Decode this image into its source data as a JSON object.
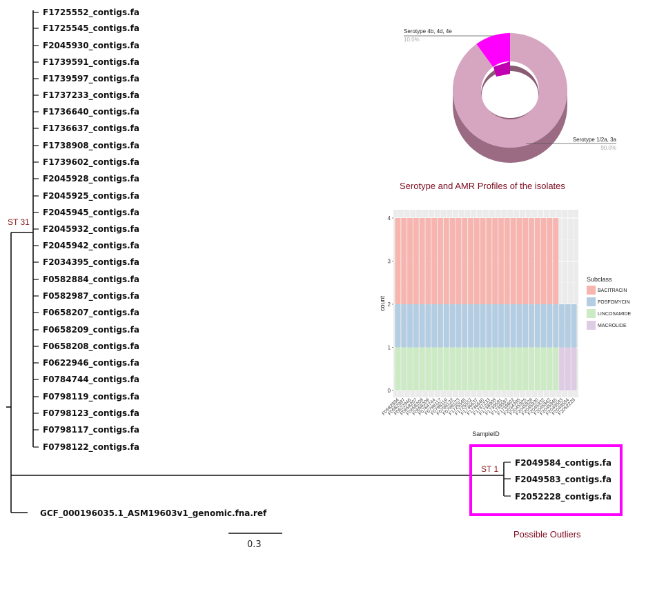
{
  "tree": {
    "st31_label": "ST 31",
    "st1_label": "ST 1",
    "st31_leaves": [
      "F1725552_contigs.fa",
      "F1725545_contigs.fa",
      "F2045930_contigs.fa",
      "F1739591_contigs.fa",
      "F1739597_contigs.fa",
      "F1737233_contigs.fa",
      "F1736640_contigs.fa",
      "F1736637_contigs.fa",
      "F1738908_contigs.fa",
      "F1739602_contigs.fa",
      "F2045928_contigs.fa",
      "F2045925_contigs.fa",
      "F2045945_contigs.fa",
      "F2045932_contigs.fa",
      "F2045942_contigs.fa",
      "F2034395_contigs.fa",
      "F0582884_contigs.fa",
      "F0582987_contigs.fa",
      "F0658207_contigs.fa",
      "F0658209_contigs.fa",
      "F0658208_contigs.fa",
      "F0622946_contigs.fa",
      "F0784744_contigs.fa",
      "F0798119_contigs.fa",
      "F0798123_contigs.fa",
      "F0798117_contigs.fa",
      "F0798122_contigs.fa"
    ],
    "st1_leaves": [
      "F2049584_contigs.fa",
      "F2049583_contigs.fa",
      "F2052228_contigs.fa"
    ],
    "reference_leaf": "GCF_000196035.1_ASM19603v1_genomic.fna.ref",
    "scale_label": "0.3"
  },
  "captions": {
    "profiles": "Serotype and AMR Profiles of the isolates",
    "outliers": "Possible Outliers"
  },
  "colors": {
    "outlier_box": "#ff00ff",
    "caption": "#7b0a1e",
    "donut_main": "#d6a6c1",
    "donut_minor": "#ff00ff",
    "bacitracin": "#f8b4ae",
    "fosfomycin": "#b3cde3",
    "lincosamide": "#ccebc5",
    "macrolide": "#decbe4"
  },
  "chart_data": [
    {
      "type": "pie",
      "style": "donut-3d",
      "slices": [
        {
          "label": "Serotype 4b, 4d, 4e",
          "value": 10.0,
          "percent_label": "10.0%"
        },
        {
          "label": "Serotype 1/2a, 3a",
          "value": 90.0,
          "percent_label": "90.0%"
        }
      ]
    },
    {
      "type": "bar",
      "stacked": true,
      "xlabel": "SampleID",
      "ylabel": "count",
      "ylim": [
        0,
        4
      ],
      "yticks": [
        "0",
        "1",
        "2",
        "3",
        "4"
      ],
      "legend_title": "Subclass",
      "legend_position": "right",
      "categories": [
        "F0582884",
        "F0582987",
        "F0622946",
        "F0658207",
        "F0658208",
        "F0658209",
        "F0784744",
        "F0798117",
        "F0798119",
        "F0798122",
        "F0798123",
        "F1725545",
        "F1725552",
        "F1736637",
        "F1736640",
        "F1737233",
        "F1738908",
        "F1739591",
        "F1739597",
        "F1739602",
        "F2034395",
        "F2045925",
        "F2045928",
        "F2045930",
        "F2045932",
        "F2045942",
        "F2045945",
        "F2049583",
        "F2049584",
        "F2052228"
      ],
      "series": [
        {
          "name": "LINCOSAMIDE",
          "values": [
            1,
            1,
            1,
            1,
            1,
            1,
            1,
            1,
            1,
            1,
            1,
            1,
            1,
            1,
            1,
            1,
            1,
            1,
            1,
            1,
            1,
            1,
            1,
            1,
            1,
            1,
            1,
            0,
            0,
            0
          ]
        },
        {
          "name": "MACROLIDE",
          "values": [
            0,
            0,
            0,
            0,
            0,
            0,
            0,
            0,
            0,
            0,
            0,
            0,
            0,
            0,
            0,
            0,
            0,
            0,
            0,
            0,
            0,
            0,
            0,
            0,
            0,
            0,
            0,
            1,
            1,
            1
          ]
        },
        {
          "name": "FOSFOMYCIN",
          "values": [
            1,
            1,
            1,
            1,
            1,
            1,
            1,
            1,
            1,
            1,
            1,
            1,
            1,
            1,
            1,
            1,
            1,
            1,
            1,
            1,
            1,
            1,
            1,
            1,
            1,
            1,
            1,
            1,
            1,
            1
          ]
        },
        {
          "name": "BACITRACIN",
          "values": [
            2,
            2,
            2,
            2,
            2,
            2,
            2,
            2,
            2,
            2,
            2,
            2,
            2,
            2,
            2,
            2,
            2,
            2,
            2,
            2,
            2,
            2,
            2,
            2,
            2,
            2,
            2,
            0,
            0,
            0
          ]
        }
      ],
      "legend_order": [
        "BACITRACIN",
        "FOSFOMYCIN",
        "LINCOSAMIDE",
        "MACROLIDE"
      ],
      "grid": true
    }
  ]
}
